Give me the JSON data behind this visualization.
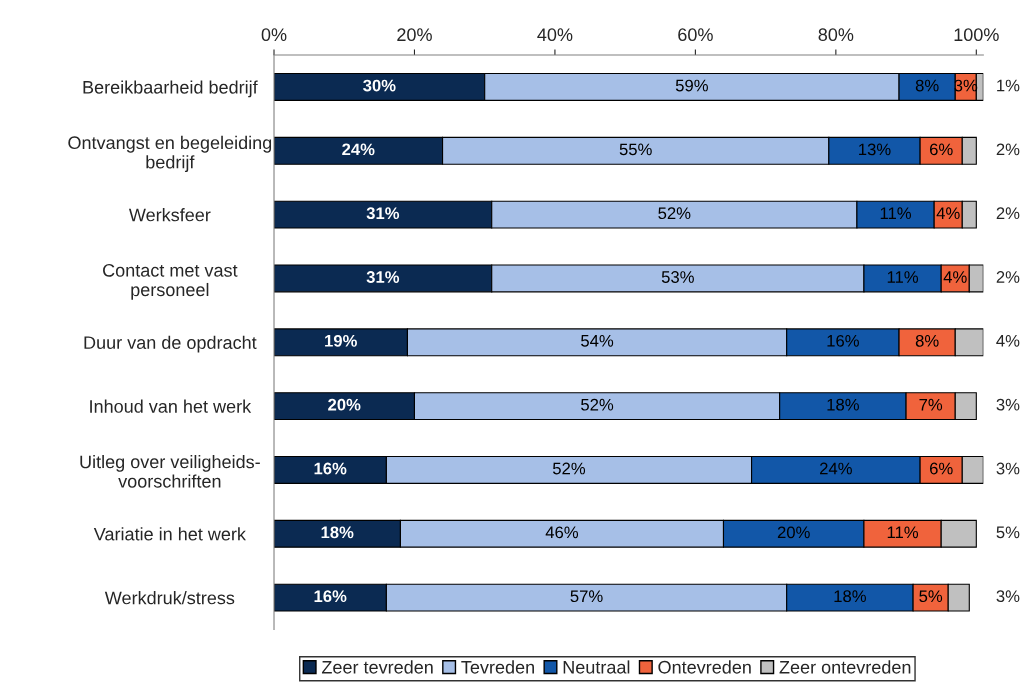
{
  "chart_data": {
    "type": "bar",
    "orientation": "horizontal",
    "stacked": true,
    "categories": [
      "Bereikbaarheid bedrijf",
      "Ontvangst en begeleiding\nbedrijf",
      "Werksfeer",
      "Contact met vast\npersoneel",
      "Duur van de opdracht",
      "Inhoud van het werk",
      "Uitleg over veiligheids-\nvoorschriften",
      "Variatie in het werk",
      "Werkdruk/stress"
    ],
    "series": [
      {
        "name": "Zeer tevreden",
        "color": "#0b2a52",
        "values": [
          30,
          24,
          31,
          31,
          19,
          20,
          16,
          18,
          16
        ],
        "value_labels": [
          "30%",
          "24%",
          "31%",
          "31%",
          "19%",
          "20%",
          "16%",
          "18%",
          "16%"
        ]
      },
      {
        "name": "Tevreden",
        "color": "#a6bfe7",
        "values": [
          59,
          55,
          52,
          53,
          54,
          52,
          52,
          46,
          57
        ],
        "value_labels": [
          "59%",
          "55%",
          "52%",
          "53%",
          "54%",
          "52%",
          "52%",
          "46%",
          "57%"
        ]
      },
      {
        "name": "Neutraal",
        "color": "#1257a8",
        "values": [
          8,
          13,
          11,
          11,
          16,
          18,
          24,
          20,
          18
        ],
        "value_labels": [
          "8%",
          "13%",
          "11%",
          "11%",
          "16%",
          "18%",
          "24%",
          "20%",
          "18%"
        ]
      },
      {
        "name": "Ontevreden",
        "color": "#f0633c",
        "values": [
          3,
          6,
          4,
          4,
          8,
          7,
          6,
          11,
          5
        ],
        "value_labels": [
          "3%",
          "6%",
          "4%",
          "4%",
          "8%",
          "7%",
          "6%",
          "11%",
          "5%"
        ]
      },
      {
        "name": "Zeer ontevreden",
        "color": "#c0c0c0",
        "values": [
          1,
          2,
          2,
          2,
          4,
          3,
          3,
          5,
          3
        ],
        "value_labels": [
          "1%",
          "2%",
          "2%",
          "2%",
          "4%",
          "3%",
          "3%",
          "5%",
          "3%"
        ]
      }
    ],
    "xlim": [
      0,
      101
    ],
    "xticks": [
      {
        "value": 0,
        "label": "0%"
      },
      {
        "value": 20,
        "label": "20%"
      },
      {
        "value": 40,
        "label": "40%"
      },
      {
        "value": 60,
        "label": "60%"
      },
      {
        "value": 80,
        "label": "80%"
      },
      {
        "value": 100,
        "label": "100%"
      }
    ],
    "grid": false,
    "legend": "bottom"
  }
}
